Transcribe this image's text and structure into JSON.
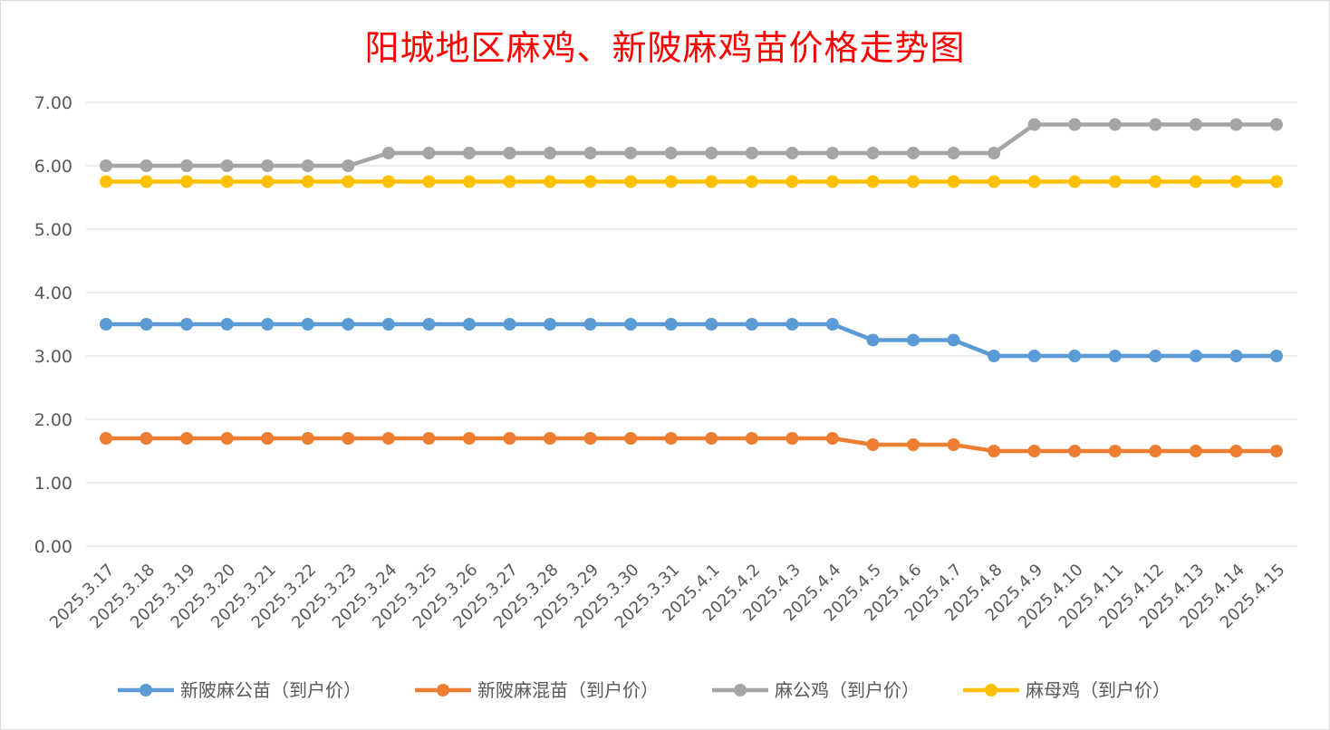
{
  "chart_data": {
    "type": "line",
    "title": "阳城地区麻鸡、新陂麻鸡苗价格走势图",
    "xlabel": "",
    "ylabel": "",
    "ylim": [
      0,
      7
    ],
    "yticks": [
      "0.00",
      "1.00",
      "2.00",
      "3.00",
      "4.00",
      "5.00",
      "6.00",
      "7.00"
    ],
    "grid": "horizontal",
    "legend_position": "bottom",
    "categories": [
      "2025.3.17",
      "2025.3.18",
      "2025.3.19",
      "2025.3.20",
      "2025.3.21",
      "2025.3.22",
      "2025.3.23",
      "2025.3.24",
      "2025.3.25",
      "2025.3.26",
      "2025.3.27",
      "2025.3.28",
      "2025.3.29",
      "2025.3.30",
      "2025.3.31",
      "2025.4.1",
      "2025.4.2",
      "2025.4.3",
      "2025.4.4",
      "2025.4.5",
      "2025.4.6",
      "2025.4.7",
      "2025.4.8",
      "2025.4.9",
      "2025.4.10",
      "2025.4.11",
      "2025.4.12",
      "2025.4.13",
      "2025.4.14",
      "2025.4.15"
    ],
    "series": [
      {
        "name": "新陂麻公苗（到户价）",
        "color": "#5b9bd5",
        "values": [
          3.5,
          3.5,
          3.5,
          3.5,
          3.5,
          3.5,
          3.5,
          3.5,
          3.5,
          3.5,
          3.5,
          3.5,
          3.5,
          3.5,
          3.5,
          3.5,
          3.5,
          3.5,
          3.5,
          3.25,
          3.25,
          3.25,
          3.0,
          3.0,
          3.0,
          3.0,
          3.0,
          3.0,
          3.0,
          3.0
        ]
      },
      {
        "name": "新陂麻混苗（到户价）",
        "color": "#ed7d31",
        "values": [
          1.7,
          1.7,
          1.7,
          1.7,
          1.7,
          1.7,
          1.7,
          1.7,
          1.7,
          1.7,
          1.7,
          1.7,
          1.7,
          1.7,
          1.7,
          1.7,
          1.7,
          1.7,
          1.7,
          1.6,
          1.6,
          1.6,
          1.5,
          1.5,
          1.5,
          1.5,
          1.5,
          1.5,
          1.5,
          1.5
        ]
      },
      {
        "name": "麻公鸡（到户价）",
        "color": "#a5a5a5",
        "values": [
          6.0,
          6.0,
          6.0,
          6.0,
          6.0,
          6.0,
          6.0,
          6.2,
          6.2,
          6.2,
          6.2,
          6.2,
          6.2,
          6.2,
          6.2,
          6.2,
          6.2,
          6.2,
          6.2,
          6.2,
          6.2,
          6.2,
          6.2,
          6.65,
          6.65,
          6.65,
          6.65,
          6.65,
          6.65,
          6.65
        ]
      },
      {
        "name": "麻母鸡（到户价）",
        "color": "#ffc000",
        "values": [
          5.75,
          5.75,
          5.75,
          5.75,
          5.75,
          5.75,
          5.75,
          5.75,
          5.75,
          5.75,
          5.75,
          5.75,
          5.75,
          5.75,
          5.75,
          5.75,
          5.75,
          5.75,
          5.75,
          5.75,
          5.75,
          5.75,
          5.75,
          5.75,
          5.75,
          5.75,
          5.75,
          5.75,
          5.75,
          5.75
        ]
      }
    ]
  }
}
